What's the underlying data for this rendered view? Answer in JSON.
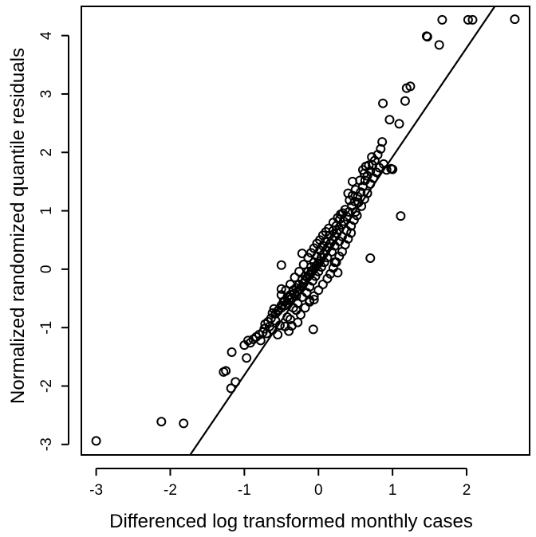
{
  "chart_data": {
    "type": "scatter",
    "title": "",
    "xlabel": "Differenced log transformed monthly cases",
    "ylabel": "Normalized randomized quantile residuals",
    "xlim": [
      -3.2,
      2.85
    ],
    "ylim": [
      -3.18,
      4.5
    ],
    "x_ticks": [
      -3,
      -2,
      -1,
      0,
      1,
      2
    ],
    "y_ticks": [
      -3,
      -2,
      -1,
      0,
      1,
      2,
      3,
      4
    ],
    "x_tick_labels": [
      "-3",
      "-2",
      "-1",
      "0",
      "1",
      "2"
    ],
    "y_tick_labels": [
      "-3",
      "-2",
      "-1",
      "0",
      "1",
      "2",
      "3",
      "4"
    ],
    "grid": false,
    "legend": "none",
    "reference_line": {
      "slope": 1.868,
      "intercept": 0.06,
      "points": [
        [
          -1.85,
          -3.4
        ],
        [
          2.38,
          4.5
        ]
      ]
    },
    "point_color": "#000000",
    "line_color": "#000000",
    "points": [
      [
        -3.0,
        -2.94
      ],
      [
        -2.12,
        -2.61
      ],
      [
        -1.82,
        -2.64
      ],
      [
        -1.18,
        -2.04
      ],
      [
        -1.12,
        -1.93
      ],
      [
        -1.25,
        -1.74
      ],
      [
        -1.28,
        -1.76
      ],
      [
        -1.17,
        -1.42
      ],
      [
        -1.0,
        -1.3
      ],
      [
        -0.97,
        -1.52
      ],
      [
        -0.95,
        -1.22
      ],
      [
        -0.92,
        -1.26
      ],
      [
        -0.78,
        -1.22
      ],
      [
        -0.75,
        -1.08
      ],
      [
        -0.73,
        -1.02
      ],
      [
        -0.7,
        -1.1
      ],
      [
        -0.66,
        -0.98
      ],
      [
        -0.62,
        -1.04
      ],
      [
        -0.58,
        -0.88
      ],
      [
        -0.55,
        -1.12
      ],
      [
        -0.52,
        -0.96
      ],
      [
        -0.45,
        -0.98
      ],
      [
        -0.42,
        -0.82
      ],
      [
        -0.38,
        -0.86
      ],
      [
        -0.62,
        -0.75
      ],
      [
        -0.6,
        -0.68
      ],
      [
        -0.55,
        -0.72
      ],
      [
        -0.5,
        -0.66
      ],
      [
        -0.47,
        -0.55
      ],
      [
        -0.45,
        -0.62
      ],
      [
        -0.42,
        -0.58
      ],
      [
        -0.4,
        -0.52
      ],
      [
        -0.36,
        -0.5
      ],
      [
        -0.33,
        -0.42
      ],
      [
        -0.3,
        -0.46
      ],
      [
        -0.28,
        -0.38
      ],
      [
        -0.25,
        -0.34
      ],
      [
        -0.22,
        -0.3
      ],
      [
        -0.2,
        -0.24
      ],
      [
        -0.18,
        -0.2
      ],
      [
        -0.15,
        -0.14
      ],
      [
        -0.12,
        -0.1
      ],
      [
        -0.1,
        -0.06
      ],
      [
        -0.08,
        -0.02
      ],
      [
        -0.05,
        0.02
      ],
      [
        -0.03,
        0.06
      ],
      [
        0.0,
        0.1
      ],
      [
        0.02,
        0.14
      ],
      [
        0.04,
        0.2
      ],
      [
        0.07,
        0.26
      ],
      [
        0.1,
        0.32
      ],
      [
        0.13,
        0.38
      ],
      [
        0.16,
        0.44
      ],
      [
        0.19,
        0.5
      ],
      [
        0.22,
        0.56
      ],
      [
        0.25,
        0.62
      ],
      [
        0.28,
        0.68
      ],
      [
        0.31,
        0.76
      ],
      [
        0.34,
        0.82
      ],
      [
        0.38,
        0.9
      ],
      [
        0.41,
        0.98
      ],
      [
        0.45,
        1.08
      ],
      [
        0.49,
        1.16
      ],
      [
        0.53,
        1.24
      ],
      [
        0.57,
        1.32
      ],
      [
        0.6,
        1.42
      ],
      [
        0.63,
        1.52
      ],
      [
        0.66,
        1.6
      ],
      [
        0.7,
        1.68
      ],
      [
        0.73,
        1.78
      ],
      [
        0.76,
        1.86
      ],
      [
        0.8,
        1.96
      ],
      [
        0.84,
        2.06
      ],
      [
        0.86,
        2.18
      ],
      [
        0.72,
        1.92
      ],
      [
        0.68,
        1.78
      ],
      [
        0.62,
        1.64
      ],
      [
        0.56,
        1.52
      ],
      [
        0.5,
        1.36
      ],
      [
        0.46,
        1.26
      ],
      [
        0.42,
        1.18
      ],
      [
        0.36,
        1.02
      ],
      [
        0.33,
        0.96
      ],
      [
        0.29,
        0.86
      ],
      [
        0.24,
        0.74
      ],
      [
        0.2,
        0.66
      ],
      [
        0.15,
        0.58
      ],
      [
        0.1,
        0.48
      ],
      [
        0.06,
        0.4
      ],
      [
        0.02,
        0.32
      ],
      [
        -0.02,
        0.22
      ],
      [
        -0.06,
        0.12
      ],
      [
        -0.1,
        0.04
      ],
      [
        -0.14,
        -0.04
      ],
      [
        -0.18,
        -0.12
      ],
      [
        -0.22,
        -0.18
      ],
      [
        -0.26,
        -0.26
      ],
      [
        -0.3,
        -0.32
      ],
      [
        -0.34,
        -0.36
      ],
      [
        -0.38,
        -0.44
      ],
      [
        -0.42,
        -0.48
      ],
      [
        -0.46,
        -0.56
      ],
      [
        -0.5,
        -0.62
      ],
      [
        -0.54,
        -0.7
      ],
      [
        -0.58,
        -0.76
      ],
      [
        -0.64,
        -0.84
      ],
      [
        -0.68,
        -0.9
      ],
      [
        -0.72,
        -0.94
      ],
      [
        -0.8,
        -1.12
      ],
      [
        -0.84,
        -1.16
      ],
      [
        -0.88,
        -1.2
      ],
      [
        -0.34,
        -0.66
      ],
      [
        -0.28,
        -0.58
      ],
      [
        -0.22,
        -0.48
      ],
      [
        -0.16,
        -0.4
      ],
      [
        -0.12,
        -0.3
      ],
      [
        -0.08,
        -0.2
      ],
      [
        -0.04,
        -0.12
      ],
      [
        0.0,
        -0.04
      ],
      [
        0.04,
        0.04
      ],
      [
        0.08,
        0.12
      ],
      [
        0.12,
        0.2
      ],
      [
        0.18,
        0.3
      ],
      [
        0.22,
        0.4
      ],
      [
        0.28,
        0.48
      ],
      [
        0.32,
        0.56
      ],
      [
        0.38,
        0.66
      ],
      [
        0.44,
        0.74
      ],
      [
        0.48,
        0.84
      ],
      [
        0.52,
        0.92
      ],
      [
        -0.14,
        0.2
      ],
      [
        -0.1,
        0.28
      ],
      [
        -0.06,
        0.36
      ],
      [
        -0.02,
        0.44
      ],
      [
        0.02,
        0.5
      ],
      [
        0.06,
        0.58
      ],
      [
        0.1,
        0.64
      ],
      [
        0.14,
        0.7
      ],
      [
        0.2,
        0.8
      ],
      [
        0.26,
        0.88
      ],
      [
        0.3,
        0.94
      ],
      [
        -0.2,
        0.08
      ],
      [
        -0.26,
        -0.04
      ],
      [
        -0.32,
        -0.14
      ],
      [
        -0.38,
        -0.26
      ],
      [
        -0.44,
        -0.36
      ],
      [
        -0.5,
        -0.44
      ],
      [
        -0.3,
        -0.7
      ],
      [
        -0.24,
        -0.78
      ],
      [
        -0.18,
        -0.66
      ],
      [
        -0.12,
        -0.56
      ],
      [
        -0.06,
        -0.46
      ],
      [
        0.0,
        -0.36
      ],
      [
        0.06,
        -0.26
      ],
      [
        0.12,
        -0.16
      ],
      [
        0.16,
        -0.08
      ],
      [
        0.2,
        0.02
      ],
      [
        0.24,
        0.12
      ],
      [
        0.28,
        0.22
      ],
      [
        0.32,
        0.3
      ],
      [
        0.36,
        0.42
      ],
      [
        0.4,
        0.52
      ],
      [
        0.44,
        0.62
      ],
      [
        0.58,
        1.08
      ],
      [
        0.62,
        1.2
      ],
      [
        0.66,
        1.3
      ],
      [
        0.7,
        1.46
      ],
      [
        0.74,
        1.56
      ],
      [
        0.78,
        1.66
      ],
      [
        0.82,
        1.74
      ],
      [
        0.88,
        1.8
      ],
      [
        0.92,
        1.7
      ],
      [
        0.98,
        1.72
      ],
      [
        0.5,
        0.98
      ],
      [
        0.54,
        1.14
      ],
      [
        0.4,
        1.3
      ],
      [
        0.46,
        1.5
      ],
      [
        0.6,
        1.7
      ],
      [
        0.64,
        1.76
      ],
      [
        -0.5,
        0.07
      ],
      [
        -0.5,
        -0.34
      ],
      [
        -0.4,
        -1.06
      ],
      [
        -0.36,
        -0.97
      ],
      [
        -0.28,
        -0.91
      ],
      [
        -0.07,
        -1.03
      ],
      [
        -0.06,
        -0.52
      ],
      [
        -0.12,
        -0.53
      ],
      [
        0.22,
        0.12
      ],
      [
        -0.22,
        0.27
      ],
      [
        0.26,
        -0.06
      ],
      [
        0.7,
        0.19
      ],
      [
        1.11,
        0.91
      ],
      [
        1.0,
        1.71
      ],
      [
        1.09,
        2.49
      ],
      [
        0.96,
        2.56
      ],
      [
        0.87,
        2.84
      ],
      [
        1.17,
        2.88
      ],
      [
        1.19,
        3.1
      ],
      [
        1.24,
        3.13
      ],
      [
        1.46,
        3.99
      ],
      [
        1.47,
        3.98
      ],
      [
        1.63,
        3.84
      ],
      [
        1.67,
        4.27
      ],
      [
        2.02,
        4.27
      ],
      [
        2.08,
        4.27
      ],
      [
        2.65,
        4.28
      ]
    ]
  }
}
